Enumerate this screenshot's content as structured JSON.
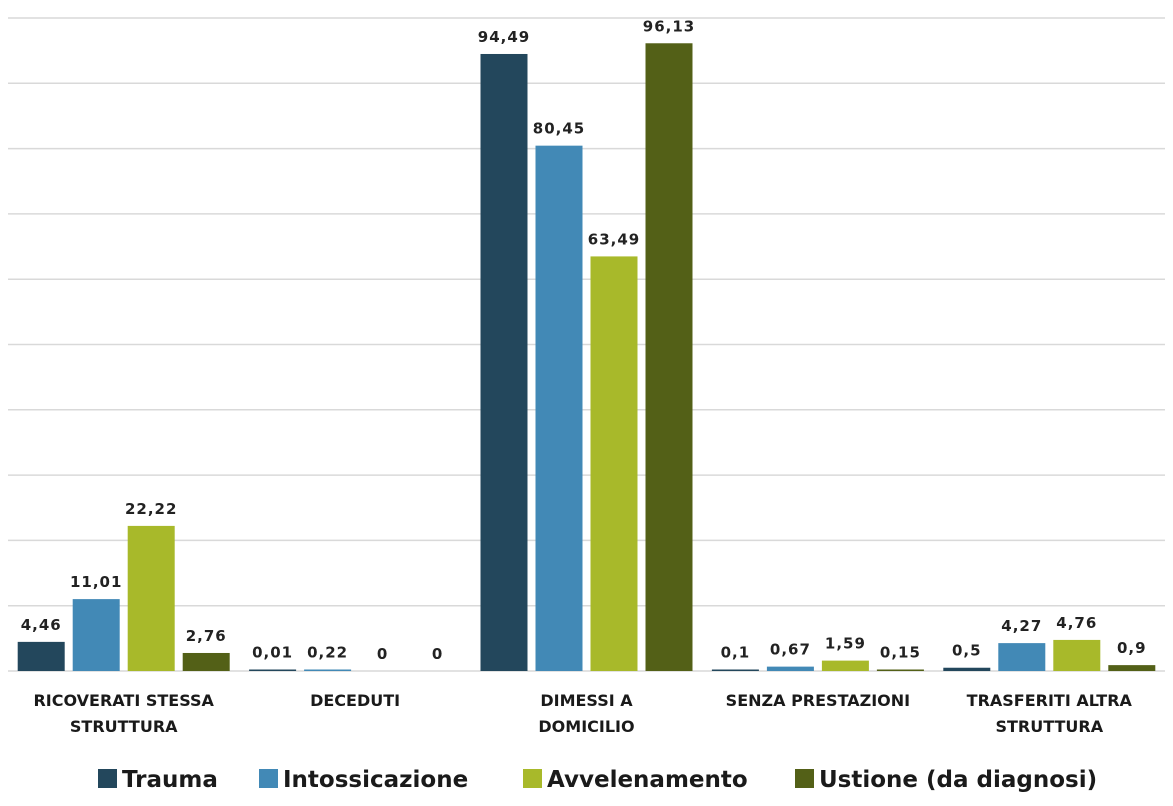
{
  "chart_data": {
    "type": "bar",
    "categories": [
      [
        "RICOVERATI STESSA",
        "STRUTTURA"
      ],
      [
        "DECEDUTI"
      ],
      [
        "DIMESSI A",
        "DOMICILIO"
      ],
      [
        "SENZA PRESTAZIONI"
      ],
      [
        "TRASFERITI ALTRA",
        "STRUTTURA"
      ]
    ],
    "series": [
      {
        "name": "Trauma",
        "color": "#23475c",
        "values": [
          4.46,
          0.01,
          94.49,
          0.1,
          0.5
        ],
        "labels": [
          "4,46",
          "0,01",
          "94,49",
          "0,1",
          "0,5"
        ]
      },
      {
        "name": "Intossicazione",
        "color": "#4289b6",
        "values": [
          11.01,
          0.22,
          80.45,
          0.67,
          4.27
        ],
        "labels": [
          "11,01",
          "0,22",
          "80,45",
          "0,67",
          "4,27"
        ]
      },
      {
        "name": "Avvelenamento",
        "color": "#a8b92a",
        "values": [
          22.22,
          0,
          63.49,
          1.59,
          4.76
        ],
        "labels": [
          "22,22",
          "0",
          "63,49",
          "1,59",
          "4,76"
        ]
      },
      {
        "name": "Ustione (da diagnosi)",
        "color": "#536017",
        "values": [
          2.76,
          0,
          96.13,
          0.15,
          0.9
        ],
        "labels": [
          "2,76",
          "0",
          "96,13",
          "0,15",
          "0,9"
        ]
      }
    ],
    "ylim": [
      0,
      100
    ],
    "grid": true,
    "legend": "bottom"
  }
}
